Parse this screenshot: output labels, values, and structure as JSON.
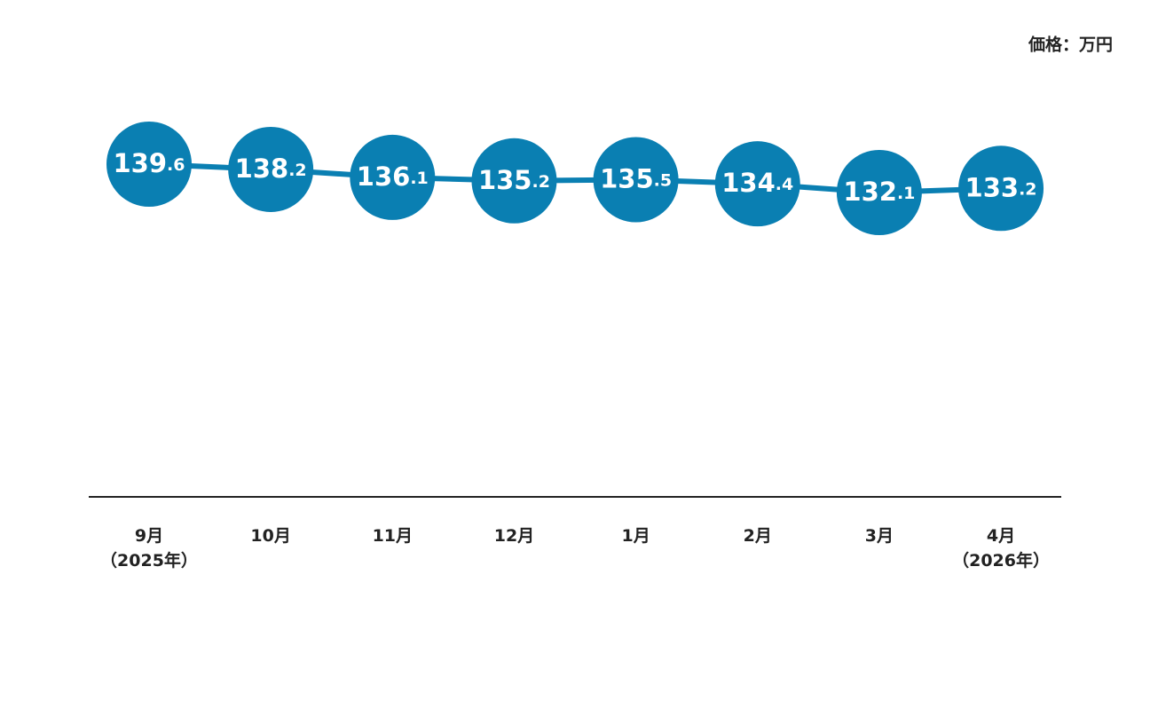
{
  "chart_data": {
    "type": "line",
    "y_label": "価格：万円",
    "categories": [
      "9月\n（2025年）",
      "10月",
      "11月",
      "12月",
      "1月",
      "2月",
      "3月",
      "4月\n（2026年）"
    ],
    "series": [
      {
        "name": "価格",
        "color": "#0a7fb2",
        "values": [
          139.6,
          138.2,
          136.1,
          135.2,
          135.5,
          134.4,
          132.1,
          133.2
        ]
      }
    ]
  }
}
